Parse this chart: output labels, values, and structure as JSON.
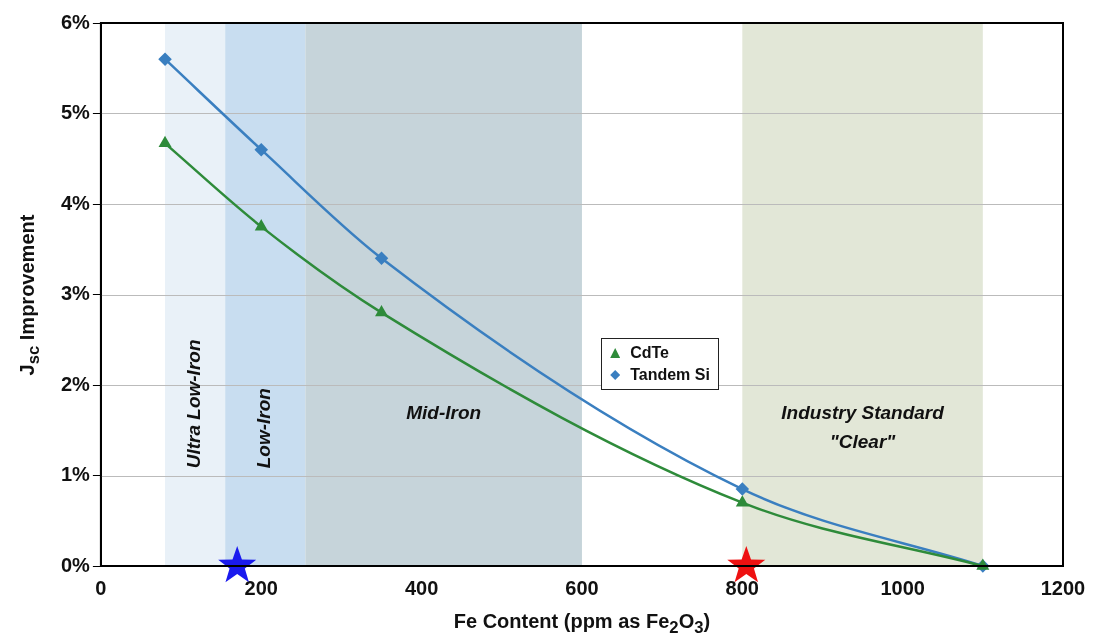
{
  "chart_data": {
    "type": "line",
    "xlabel": "Fe Content (ppm as Fe$_{2}$O$_{3}$)",
    "ylabel": "J$_{sc}$ Improvement",
    "xlim": [
      0,
      1200
    ],
    "xticks": [
      0,
      200,
      400,
      600,
      800,
      1000,
      1200
    ],
    "ylim": [
      0,
      6
    ],
    "yticks": [
      {
        "value": 0,
        "label": "0%"
      },
      {
        "value": 1,
        "label": "1%"
      },
      {
        "value": 2,
        "label": "2%"
      },
      {
        "value": 3,
        "label": "3%"
      },
      {
        "value": 4,
        "label": "4%"
      },
      {
        "value": 5,
        "label": "5%"
      },
      {
        "value": 6,
        "label": "6%"
      }
    ],
    "grid": "y",
    "legend": "right",
    "series": [
      {
        "name": "CdTe",
        "type": "line",
        "marker": "triangle",
        "color": "#2e8b3a",
        "x": [
          80,
          200,
          350,
          800,
          1100
        ],
        "values": [
          4.67,
          3.75,
          2.8,
          0.7,
          0
        ]
      },
      {
        "name": "Tandem Si",
        "type": "line",
        "marker": "diamond",
        "color": "#3a7fc0",
        "x": [
          80,
          200,
          350,
          800,
          1100
        ],
        "values": [
          5.6,
          4.6,
          3.4,
          0.85,
          0
        ]
      },
      {
        "type": "scatter",
        "marker": "star",
        "color": "#1a1aee",
        "x": [
          170
        ],
        "values": [
          0
        ]
      },
      {
        "type": "scatter",
        "marker": "star",
        "color": "#ee1111",
        "x": [
          805
        ],
        "values": [
          0
        ]
      }
    ],
    "bands": [
      {
        "axis": "x",
        "from": 80,
        "to": 155,
        "label": "Ultra Low-Iron",
        "color": "#e9f1f8"
      },
      {
        "axis": "x",
        "from": 155,
        "to": 255,
        "label": "Low-Iron",
        "color": "#c8ddf0"
      },
      {
        "axis": "x",
        "from": 255,
        "to": 600,
        "label": "Mid-Iron",
        "color": "#c6d4da"
      },
      {
        "axis": "x",
        "from": 800,
        "to": 1100,
        "label": "Industry Standard \"Clear\"",
        "color": "#e2e7d7"
      }
    ]
  }
}
